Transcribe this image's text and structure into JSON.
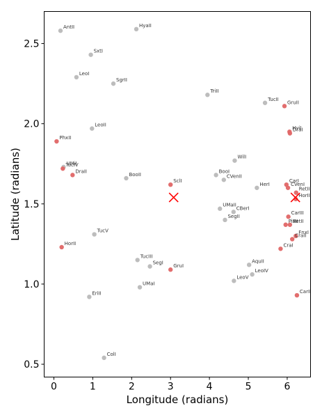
{
  "chart_data": {
    "type": "scatter",
    "xlabel": "Longitude (radians)",
    "ylabel": "Latitude (radians)",
    "xlim": [
      -0.25,
      6.6
    ],
    "ylim": [
      0.42,
      2.7
    ],
    "xticks": [
      "0",
      "1",
      "2",
      "3",
      "4",
      "5",
      "6"
    ],
    "yticks": [
      "0.5",
      "1.0",
      "1.5",
      "2.0",
      "2.5"
    ],
    "grid": false,
    "colors": {
      "grey": "#b9b9b9",
      "red": "#e06666",
      "marker": "#ff0000"
    },
    "series": [
      {
        "color": "grey",
        "points": [
          {
            "label": "AntII",
            "x": 0.17,
            "y": 2.58
          },
          {
            "label": "HyaII",
            "x": 2.12,
            "y": 2.59
          },
          {
            "label": "SxtI",
            "x": 0.95,
            "y": 2.43
          },
          {
            "label": "LeoI",
            "x": 0.58,
            "y": 2.29
          },
          {
            "label": "SgrII",
            "x": 1.53,
            "y": 2.25
          },
          {
            "label": "TriII",
            "x": 3.95,
            "y": 2.18
          },
          {
            "label": "TucII",
            "x": 5.43,
            "y": 2.13
          },
          {
            "label": "LeoII",
            "x": 0.98,
            "y": 1.97
          },
          {
            "label": "WilI",
            "x": 4.65,
            "y": 1.77
          },
          {
            "label": "UMiI",
            "x": 0.25,
            "y": 1.73
          },
          {
            "label": "BooI",
            "x": 4.17,
            "y": 1.68
          },
          {
            "label": "CVenII",
            "x": 4.37,
            "y": 1.65
          },
          {
            "label": "BooII",
            "x": 1.86,
            "y": 1.66
          },
          {
            "label": "HerI",
            "x": 5.22,
            "y": 1.6
          },
          {
            "label": "UMaII",
            "x": 4.27,
            "y": 1.47
          },
          {
            "label": "CBerI",
            "x": 4.62,
            "y": 1.45
          },
          {
            "label": "SegII",
            "x": 4.4,
            "y": 1.4
          },
          {
            "label": "TucV",
            "x": 1.04,
            "y": 1.31
          },
          {
            "label": "TucIII",
            "x": 2.15,
            "y": 1.15
          },
          {
            "label": "SegI",
            "x": 2.47,
            "y": 1.11
          },
          {
            "label": "AquII",
            "x": 5.02,
            "y": 1.12
          },
          {
            "label": "LeoIV",
            "x": 5.1,
            "y": 1.06
          },
          {
            "label": "LeoV",
            "x": 4.63,
            "y": 1.02
          },
          {
            "label": "UMaI",
            "x": 2.21,
            "y": 0.98
          },
          {
            "label": "EriII",
            "x": 0.91,
            "y": 0.92
          },
          {
            "label": "ColI",
            "x": 1.29,
            "y": 0.54
          }
        ]
      },
      {
        "color": "red",
        "points": [
          {
            "label": "GruII",
            "x": 5.93,
            "y": 2.11
          },
          {
            "label": "HyiI",
            "x": 6.06,
            "y": 1.95
          },
          {
            "label": "DraI",
            "x": 6.07,
            "y": 1.94
          },
          {
            "label": "PhxII",
            "x": 0.07,
            "y": 1.89
          },
          {
            "label": "TucIV",
            "x": 0.23,
            "y": 1.72
          },
          {
            "label": "DraII",
            "x": 0.48,
            "y": 1.68
          },
          {
            "label": "SclI",
            "x": 3.0,
            "y": 1.62
          },
          {
            "label": "CarI",
            "x": 5.98,
            "y": 1.62
          },
          {
            "label": "CVenI",
            "x": 6.02,
            "y": 1.6
          },
          {
            "label": "RetII",
            "x": 6.23,
            "y": 1.57
          },
          {
            "label": "HorII",
            "x": 6.22,
            "y": 1.53
          },
          {
            "label": "CarIII",
            "x": 6.03,
            "y": 1.42
          },
          {
            "label": "PisII",
            "x": 5.96,
            "y": 1.37
          },
          {
            "label": "RetII",
            "x": 6.07,
            "y": 1.37
          },
          {
            "label": "FnxI",
            "x": 6.22,
            "y": 1.3
          },
          {
            "label": "CraII",
            "x": 6.13,
            "y": 1.28
          },
          {
            "label": "CraI",
            "x": 5.83,
            "y": 1.22
          },
          {
            "label": "HorII",
            "x": 0.2,
            "y": 1.23
          },
          {
            "label": "GruI",
            "x": 3.0,
            "y": 1.09
          },
          {
            "label": "CarII",
            "x": 6.25,
            "y": 0.93
          }
        ]
      }
    ],
    "markers": [
      {
        "x": 3.08,
        "y": 1.54
      },
      {
        "x": 6.21,
        "y": 1.54
      }
    ]
  }
}
